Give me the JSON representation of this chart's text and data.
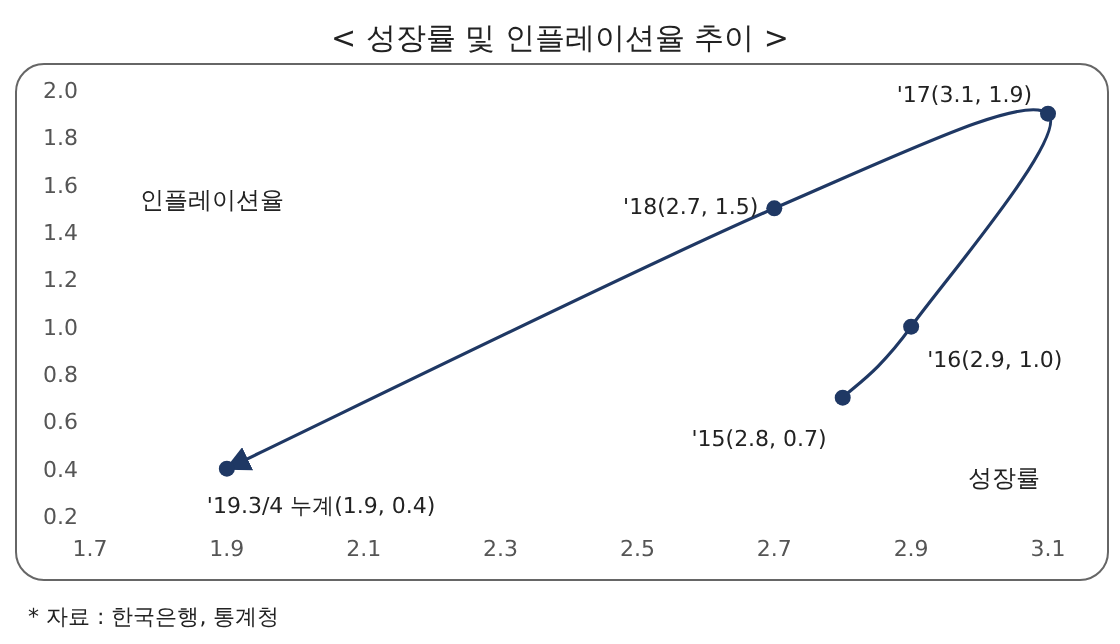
{
  "chart_data": {
    "type": "line",
    "title": "< 성장률 및 인플레이션율 추이 >",
    "xlabel": "성장률",
    "ylabel": "인플레이션율",
    "series": [
      {
        "color": "#1f3864",
        "x": [
          2.8,
          2.9,
          3.1,
          2.7,
          1.9
        ],
        "values": [
          0.7,
          1.0,
          1.9,
          1.5,
          0.4
        ]
      }
    ],
    "marker": "circle",
    "line_style": "solid",
    "grid": false,
    "xlim": [
      1.7,
      3.1
    ],
    "xticks": [
      1.7,
      1.9,
      2.1,
      2.3,
      2.5,
      2.7,
      2.9,
      3.1
    ],
    "ylim": [
      0.2,
      2.0
    ],
    "yticks": [
      0.2,
      0.4,
      0.6,
      0.8,
      {
        "value": 1,
        "label": "1.0"
      },
      1.2,
      1.4,
      1.6,
      1.8,
      {
        "value": 2,
        "label": "2.0"
      }
    ],
    "annotations": [
      {
        "text": "'15(2.8, 0.7)",
        "x": 2.8,
        "y": 0.7
      },
      {
        "text": "'16(2.9, 1.0)",
        "x": 2.9,
        "y": 1.0
      },
      {
        "text": "'17(3.1, 1.9)",
        "x": 3.1,
        "y": 1.9
      },
      {
        "text": "'18(2.7, 1.5)",
        "x": 2.7,
        "y": 1.5
      },
      {
        "text": "'19.3/4 누계(1.9, 0.4)",
        "x": 1.9,
        "y": 0.4
      },
      "* 자료 : 한국은행, 통계청"
    ]
  }
}
